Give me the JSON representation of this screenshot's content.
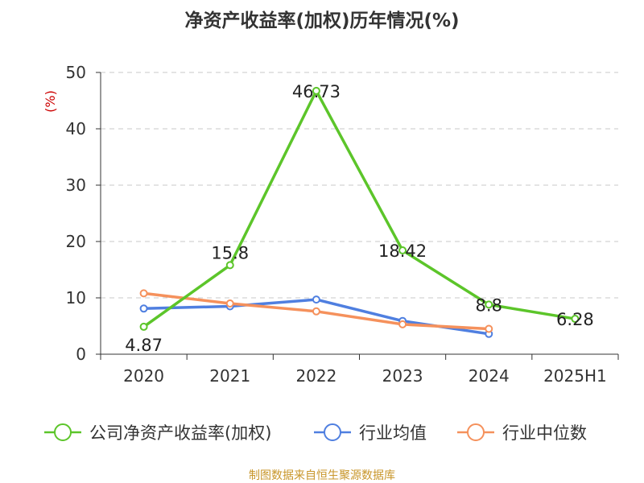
{
  "title": "净资产收益率(加权)历年情况(%)",
  "footer": {
    "text": "制图数据来自恒生聚源数据库",
    "color": "#c8962a"
  },
  "chart_data": {
    "type": "line",
    "title": "净资产收益率(加权)历年情况(%)",
    "ylabel": "(%)",
    "ylim": [
      0,
      50
    ],
    "yticks": [
      0,
      10,
      20,
      30,
      40,
      50
    ],
    "grid": true,
    "legend_position": "bottom",
    "categories": [
      "2020",
      "2021",
      "2022",
      "2023",
      "2024",
      "2025H1"
    ],
    "series": [
      {
        "name": "公司净资产收益率(加权)",
        "color": "#5cc52a",
        "values": [
          4.87,
          15.8,
          46.73,
          18.42,
          8.8,
          6.28
        ],
        "labels": [
          "4.87",
          "15.8",
          "46.73",
          "18.42",
          "8.8",
          "6.28"
        ]
      },
      {
        "name": "行业均值",
        "color": "#4f7fe0",
        "values": [
          8.1,
          8.5,
          9.7,
          5.9,
          3.6,
          null
        ]
      },
      {
        "name": "行业中位数",
        "color": "#f5915c",
        "values": [
          10.8,
          9.0,
          7.6,
          5.3,
          4.5,
          null
        ]
      }
    ]
  }
}
